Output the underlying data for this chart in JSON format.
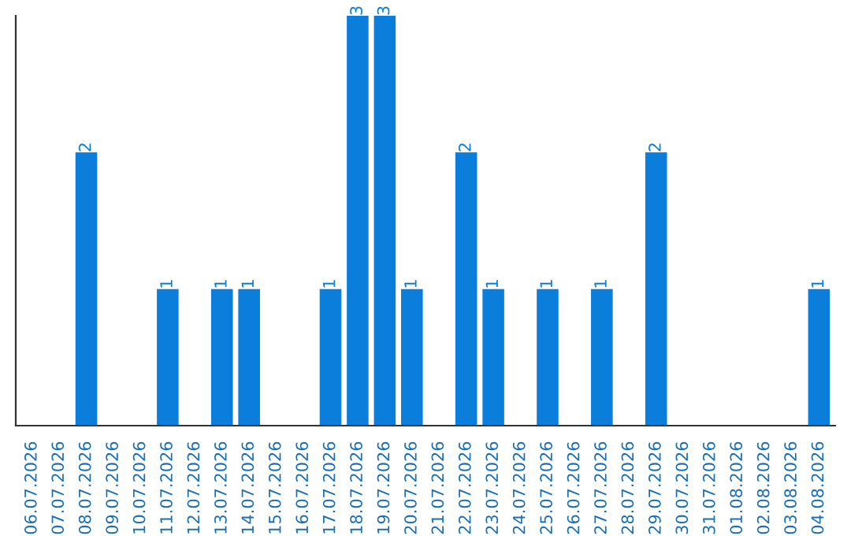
{
  "chart_data": {
    "type": "bar",
    "categories": [
      "06.07.2026",
      "07.07.2026",
      "08.07.2026",
      "09.07.2026",
      "10.07.2026",
      "11.07.2026",
      "12.07.2026",
      "13.07.2026",
      "14.07.2026",
      "15.07.2026",
      "16.07.2026",
      "17.07.2026",
      "18.07.2026",
      "19.07.2026",
      "20.07.2026",
      "21.07.2026",
      "22.07.2026",
      "23.07.2026",
      "24.07.2026",
      "25.07.2026",
      "26.07.2026",
      "27.07.2026",
      "28.07.2026",
      "29.07.2026",
      "30.07.2026",
      "31.07.2026",
      "01.08.2026",
      "02.08.2026",
      "03.08.2026",
      "04.08.2026"
    ],
    "values": [
      0,
      0,
      2,
      0,
      0,
      1,
      0,
      1,
      1,
      0,
      0,
      1,
      3,
      3,
      1,
      0,
      2,
      1,
      0,
      1,
      0,
      1,
      0,
      2,
      0,
      0,
      0,
      0,
      0,
      1
    ],
    "value_labels": [
      null,
      null,
      "2",
      null,
      null,
      "1",
      null,
      "1",
      "1",
      null,
      null,
      "1",
      "3",
      "3",
      "1",
      null,
      "2",
      "1",
      null,
      "1",
      null,
      "1",
      null,
      "2",
      null,
      null,
      null,
      null,
      null,
      "1"
    ],
    "color": "#0b7dda",
    "ylim": [
      0,
      3
    ],
    "tick_labels": "x",
    "grid": false,
    "legend": false
  }
}
